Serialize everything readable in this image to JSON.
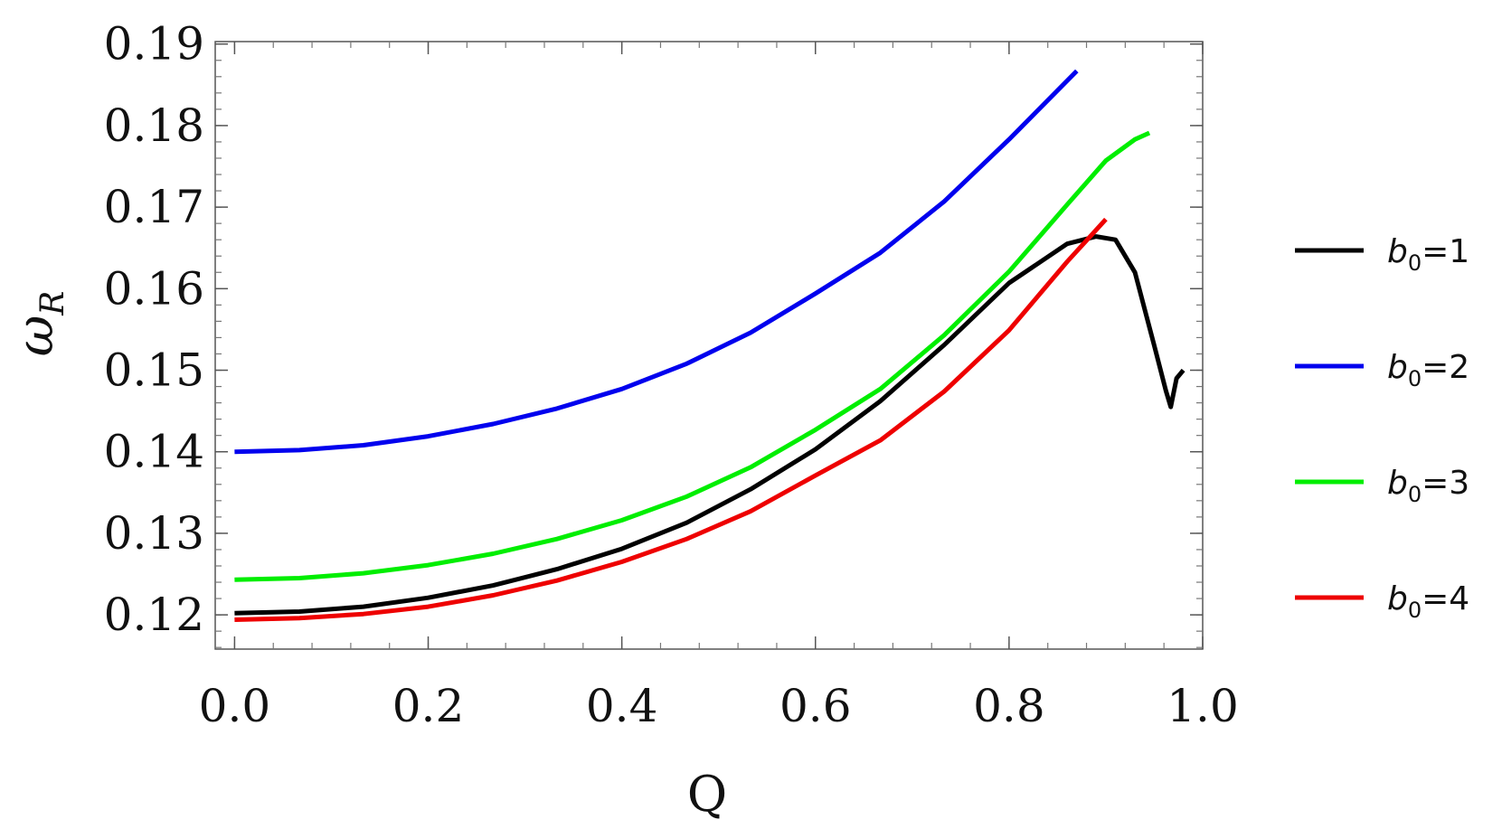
{
  "chart_data": {
    "type": "line",
    "title": "",
    "xlabel": "Q",
    "ylabel": {
      "main": "ω",
      "sub": "R"
    },
    "xlim": [
      -0.02,
      1.0
    ],
    "ylim": [
      0.1158,
      0.1903
    ],
    "xticks": [
      0.0,
      0.2,
      0.4,
      0.6,
      0.8,
      1.0
    ],
    "xtick_labels": [
      "0.0",
      "0.2",
      "0.4",
      "0.6",
      "0.8",
      "1.0"
    ],
    "yticks": [
      0.12,
      0.13,
      0.14,
      0.15,
      0.16,
      0.17,
      0.18,
      0.19
    ],
    "ytick_labels": [
      "0.12",
      "0.13",
      "0.14",
      "0.15",
      "0.16",
      "0.17",
      "0.18",
      "0.19"
    ],
    "grid": false,
    "legend_position": "right",
    "series": [
      {
        "name": "b0=1",
        "label_main": "b",
        "label_sub": "0",
        "label_rest": "=1",
        "color": "#000000",
        "x": [
          0.0,
          0.067,
          0.133,
          0.2,
          0.267,
          0.333,
          0.4,
          0.467,
          0.533,
          0.6,
          0.667,
          0.733,
          0.8,
          0.86,
          0.89,
          0.91,
          0.93,
          0.95,
          0.962,
          0.967,
          0.973,
          0.98
        ],
        "y": [
          0.1202,
          0.1204,
          0.121,
          0.1221,
          0.1236,
          0.1256,
          0.1281,
          0.1313,
          0.1354,
          0.1403,
          0.1462,
          0.1531,
          0.1607,
          0.1655,
          0.1664,
          0.166,
          0.162,
          0.153,
          0.1475,
          0.1455,
          0.149,
          0.15
        ]
      },
      {
        "name": "b0=2",
        "label_main": "b",
        "label_sub": "0",
        "label_rest": "=2",
        "color": "#0000ee",
        "x": [
          0.0,
          0.067,
          0.133,
          0.2,
          0.267,
          0.333,
          0.4,
          0.467,
          0.533,
          0.6,
          0.667,
          0.733,
          0.8,
          0.87
        ],
        "y": [
          0.14,
          0.1402,
          0.1408,
          0.1419,
          0.1434,
          0.1453,
          0.1477,
          0.1508,
          0.1546,
          0.1594,
          0.1644,
          0.1707,
          0.1783,
          0.1867
        ]
      },
      {
        "name": "b0=3",
        "label_main": "b",
        "label_sub": "0",
        "label_rest": "=3",
        "color": "#00ee00",
        "x": [
          0.0,
          0.067,
          0.133,
          0.2,
          0.267,
          0.333,
          0.4,
          0.467,
          0.533,
          0.6,
          0.667,
          0.733,
          0.8,
          0.86,
          0.9,
          0.93,
          0.945
        ],
        "y": [
          0.1243,
          0.1245,
          0.1251,
          0.1261,
          0.1275,
          0.1293,
          0.1316,
          0.1345,
          0.1381,
          0.1427,
          0.1477,
          0.1543,
          0.1621,
          0.1703,
          0.1757,
          0.1783,
          0.1791
        ]
      },
      {
        "name": "b0=4",
        "label_main": "b",
        "label_sub": "0",
        "label_rest": "=4",
        "color": "#ee0000",
        "x": [
          0.0,
          0.067,
          0.133,
          0.2,
          0.267,
          0.333,
          0.4,
          0.467,
          0.533,
          0.6,
          0.667,
          0.733,
          0.8,
          0.86,
          0.9
        ],
        "y": [
          0.1194,
          0.1196,
          0.1201,
          0.121,
          0.1224,
          0.1242,
          0.1265,
          0.1293,
          0.1327,
          0.1371,
          0.1414,
          0.1474,
          0.1549,
          0.1633,
          0.1685
        ]
      }
    ]
  }
}
